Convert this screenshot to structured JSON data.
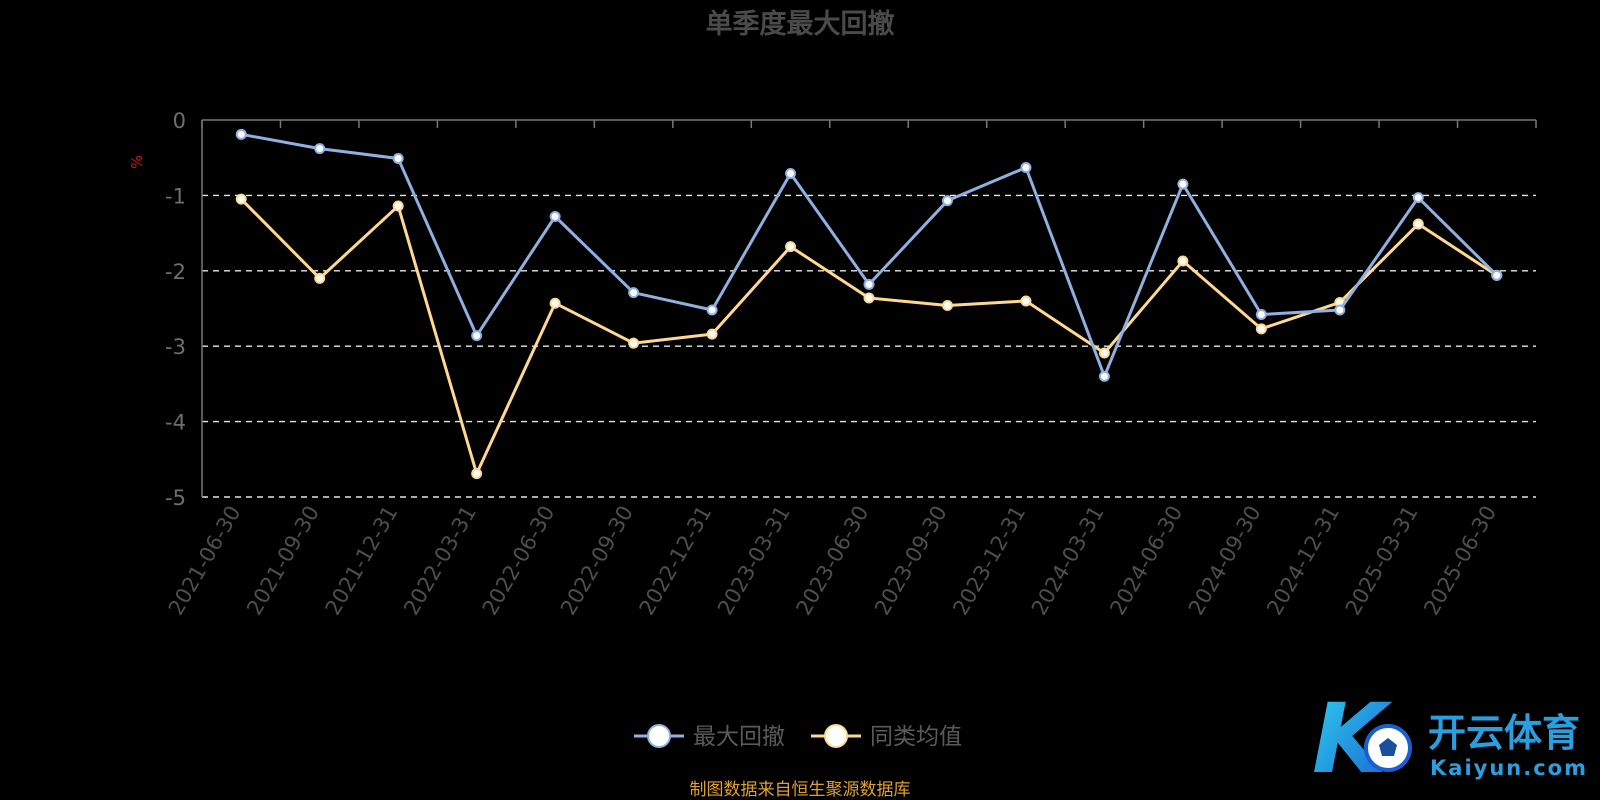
{
  "chart_data": {
    "type": "line",
    "title": "单季度最大回撤",
    "ylabel": "%",
    "ylim": [
      -5,
      0
    ],
    "yticks": [
      0,
      -1,
      -2,
      -3,
      -4,
      -5
    ],
    "grid": true,
    "legend_position": "bottom",
    "categories": [
      "2021-06-30",
      "2021-09-30",
      "2021-12-31",
      "2022-03-31",
      "2022-06-30",
      "2022-09-30",
      "2022-12-31",
      "2023-03-31",
      "2023-06-30",
      "2023-09-30",
      "2023-12-31",
      "2024-03-31",
      "2024-06-30",
      "2024-09-30",
      "2024-12-31",
      "2025-03-31",
      "2025-06-30"
    ],
    "series": [
      {
        "name": "最大回撤",
        "color": "#8fb0e0",
        "values": [
          -0.19,
          -0.38,
          -0.51,
          -2.86,
          -1.28,
          -2.29,
          -2.52,
          -0.71,
          -2.18,
          -1.07,
          -0.63,
          -3.4,
          -0.85,
          -2.58,
          -2.52,
          -1.03,
          -2.06
        ]
      },
      {
        "name": "同类均值",
        "color": "#ffd88f",
        "values": [
          -1.05,
          -2.1,
          -1.14,
          -4.69,
          -2.43,
          -2.96,
          -2.84,
          -1.68,
          -2.36,
          -2.46,
          -2.4,
          -3.09,
          -1.87,
          -2.77,
          -2.42,
          -1.38,
          -2.06
        ]
      }
    ]
  },
  "footer": {
    "source": "制图数据来自恒生聚源数据库"
  },
  "watermark": {
    "brand_cn": "开云体育",
    "brand_en": "Kaiyun.com",
    "mark": "K"
  }
}
